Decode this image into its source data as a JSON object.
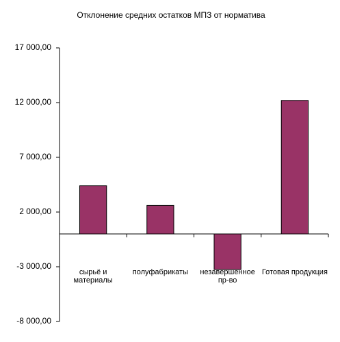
{
  "chart_data": {
    "type": "bar",
    "title": "Отклонение средних остатков МПЗ от норматива",
    "categories": [
      "сырьё и материалы",
      "полуфабрикаты",
      "незавершенное пр-во",
      "Готовая продукция"
    ],
    "values": [
      4400,
      2600,
      -3250,
      12200
    ],
    "color": "#993366",
    "ylim": [
      -8000,
      17000
    ],
    "yticks": [
      {
        "value": -8000,
        "label": "-8 000,00"
      },
      {
        "value": -3000,
        "label": "-3 000,00"
      },
      {
        "value": 2000,
        "label": "2 000,00"
      },
      {
        "value": 7000,
        "label": "7 000,00"
      },
      {
        "value": 12000,
        "label": "12 000,00"
      },
      {
        "value": 17000,
        "label": "17 000,00"
      }
    ],
    "grid": false
  }
}
